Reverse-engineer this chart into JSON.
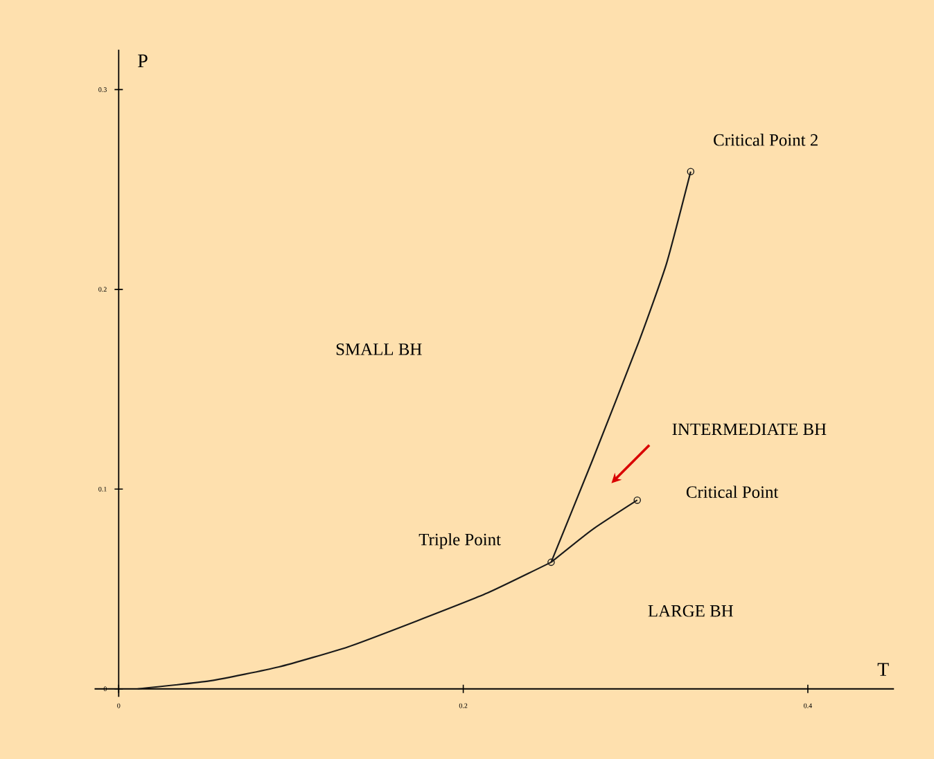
{
  "chart_data": {
    "type": "line",
    "xlabel": "T",
    "ylabel": "P",
    "xlim": [
      -0.014,
      0.45
    ],
    "ylim": [
      -0.004,
      0.32
    ],
    "xticks": [
      0,
      0.2,
      0.4
    ],
    "yticks": [
      0,
      0.1,
      0.2,
      0.3
    ],
    "grid": false,
    "marker": "none",
    "line_style": "solid",
    "series": [
      {
        "color": "#1a1a1a",
        "x": [
          0.011,
          0.053,
          0.093,
          0.133,
          0.173,
          0.214,
          0.251
        ],
        "values": [
          0,
          0.004,
          0.011,
          0.021,
          0.034,
          0.048,
          0.0634
        ]
      },
      {
        "color": "#1a1a1a",
        "x": [
          0.251,
          0.275,
          0.302,
          0.318,
          0.332
        ],
        "values": [
          0.0634,
          0.1145,
          0.174,
          0.213,
          0.259
        ]
      },
      {
        "color": "#1a1a1a",
        "x": [
          0.251,
          0.275,
          0.301
        ],
        "values": [
          0.0634,
          0.0798,
          0.0945
        ]
      },
      {
        "type": "scatter",
        "color": "#1a1a1a",
        "marker": "circle",
        "x": [
          0.251,
          0.301,
          0.332
        ],
        "values": [
          0.0634,
          0.0945,
          0.259
        ]
      }
    ],
    "annotations": [
      {
        "text": "Critical Point 2",
        "x": 0.332,
        "y": 0.259
      },
      {
        "text": "Critical Point",
        "x": 0.301,
        "y": 0.0945
      },
      "Triple Point",
      "SMALL BH",
      "INTERMEDIATE BH",
      "LARGE BH"
    ]
  }
}
